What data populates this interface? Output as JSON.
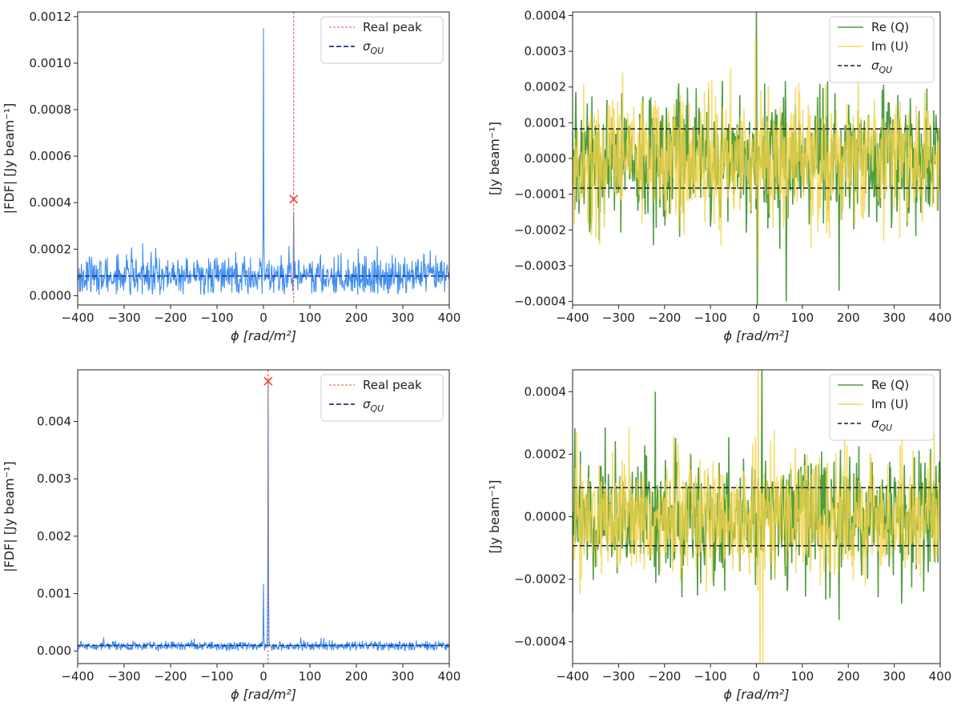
{
  "figure": {
    "caption": "",
    "colors": {
      "fdf_line": "#3f8ef0",
      "real_peak": "#ec4b3a",
      "sigma_left": "#1f2f8f",
      "sigma_right": "#1f1f1f",
      "real_part": "#4e9d3f",
      "imag_part": "#f5d34c",
      "axes": "#222222"
    }
  },
  "chart_data": [
    {
      "id": "top-left",
      "type": "line",
      "xlabel": "ϕ [rad/m²]",
      "ylabel": "|FDF| [Jy beam⁻¹]",
      "xlim": [
        -400,
        400
      ],
      "ylim": [
        -4e-05,
        0.00122
      ],
      "xticks": [
        -400,
        -300,
        -200,
        -100,
        0,
        100,
        200,
        300,
        400
      ],
      "xtick_labels": [
        "−400",
        "−300",
        "−200",
        "−100",
        "0",
        "100",
        "200",
        "300",
        "400"
      ],
      "yticks": [
        0.0,
        0.0002,
        0.0004,
        0.0006,
        0.0008,
        0.001,
        0.0012
      ],
      "ytick_labels": [
        "0.0000",
        "0.0002",
        "0.0004",
        "0.0006",
        "0.0008",
        "0.0010",
        "0.0012"
      ],
      "noise": {
        "mean": 8.5e-05,
        "std": 5e-05,
        "floor": 3e-06,
        "max_spike": 0.00033
      },
      "peaks": [
        {
          "x": 0,
          "y": 0.00115
        },
        {
          "x": 65,
          "y": 0.00036
        }
      ],
      "sigma_qu": 8.5e-05,
      "real_peak_x": 65,
      "real_peak_marker": {
        "x": 65,
        "y": 0.000415
      },
      "legend": {
        "position": "top-right",
        "entries": [
          "Real peak",
          "σQU"
        ]
      }
    },
    {
      "id": "top-right",
      "type": "line",
      "xlabel": "ϕ [rad/m²]",
      "ylabel": "[Jy beam⁻¹]",
      "xlim": [
        -400,
        400
      ],
      "ylim": [
        -0.00041,
        0.00041
      ],
      "xticks": [
        -400,
        -300,
        -200,
        -100,
        0,
        100,
        200,
        300,
        400
      ],
      "xtick_labels": [
        "−400",
        "−300",
        "−200",
        "−100",
        "0",
        "100",
        "200",
        "300",
        "400"
      ],
      "yticks": [
        -0.0004,
        -0.0003,
        -0.0002,
        -0.0001,
        0.0,
        0.0001,
        0.0002,
        0.0003,
        0.0004
      ],
      "ytick_labels": [
        "−0.0004",
        "−0.0003",
        "−0.0002",
        "−0.0001",
        "0.0000",
        "0.0001",
        "0.0002",
        "0.0003",
        "0.0004"
      ],
      "noise_std": 9e-05,
      "spikes_re": [
        {
          "x": 0,
          "y": 0.00045
        },
        {
          "x": 2,
          "y": -0.00045
        },
        {
          "x": 65,
          "y": -0.0004
        },
        {
          "x": 180,
          "y": -0.00037
        }
      ],
      "spikes_im": [
        {
          "x": -2,
          "y": 0.00034
        },
        {
          "x": 4,
          "y": -0.0003
        }
      ],
      "sigma_qu": 8.3e-05,
      "legend": {
        "position": "top-right",
        "entries": [
          "Re (Q)",
          "Im (U)",
          "σQU"
        ]
      }
    },
    {
      "id": "bottom-left",
      "type": "line",
      "xlabel": "ϕ [rad/m²]",
      "ylabel": "|FDF| [Jy beam⁻¹]",
      "xlim": [
        -400,
        400
      ],
      "ylim": [
        -0.00022,
        0.0049
      ],
      "xticks": [
        -400,
        -300,
        -200,
        -100,
        0,
        100,
        200,
        300,
        400
      ],
      "xtick_labels": [
        "−400",
        "−300",
        "−200",
        "−100",
        "0",
        "100",
        "200",
        "300",
        "400"
      ],
      "yticks": [
        0.0,
        0.001,
        0.002,
        0.003,
        0.004
      ],
      "ytick_labels": [
        "0.000",
        "0.001",
        "0.002",
        "0.003",
        "0.004"
      ],
      "noise": {
        "mean": 9e-05,
        "std": 5e-05,
        "floor": 3e-06,
        "max_spike": 0.0004
      },
      "peaks": [
        {
          "x": 0,
          "y": 0.00117
        },
        {
          "x": 10,
          "y": 0.0047
        }
      ],
      "sigma_qu": 9.5e-05,
      "real_peak_x": 10,
      "real_peak_marker": {
        "x": 10,
        "y": 0.0047
      },
      "legend": {
        "position": "top-right",
        "entries": [
          "Real peak",
          "σQU"
        ]
      }
    },
    {
      "id": "bottom-right",
      "type": "line",
      "xlabel": "ϕ [rad/m²]",
      "ylabel": "[Jy beam⁻¹]",
      "xlim": [
        -400,
        400
      ],
      "ylim": [
        -0.00047,
        0.00047
      ],
      "xticks": [
        -400,
        -300,
        -200,
        -100,
        0,
        100,
        200,
        300,
        400
      ],
      "xtick_labels": [
        "−400",
        "−300",
        "−200",
        "−100",
        "0",
        "100",
        "200",
        "300",
        "400"
      ],
      "yticks": [
        -0.0004,
        -0.0002,
        0.0,
        0.0002,
        0.0004
      ],
      "ytick_labels": [
        "−0.0004",
        "−0.0002",
        "0.0000",
        "0.0002",
        "0.0004"
      ],
      "noise_std": 0.0001,
      "spikes_re": [
        {
          "x": 12,
          "y": 0.0005
        },
        {
          "x": -220,
          "y": 0.0004
        },
        {
          "x": -400,
          "y": -0.00031
        },
        {
          "x": 180,
          "y": -0.00033
        }
      ],
      "spikes_im": [
        {
          "x": 4,
          "y": 0.0005
        },
        {
          "x": 8,
          "y": -0.0005
        },
        {
          "x": 14,
          "y": -0.0005
        }
      ],
      "sigma_qu": 9.3e-05,
      "legend": {
        "position": "top-right",
        "entries": [
          "Re (Q)",
          "Im (U)",
          "σQU"
        ]
      }
    }
  ]
}
